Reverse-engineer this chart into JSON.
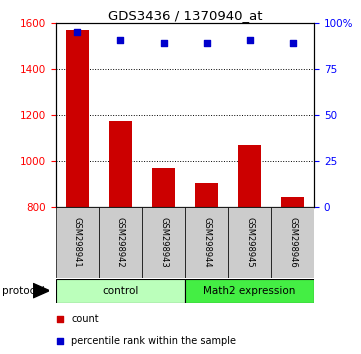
{
  "title": "GDS3436 / 1370940_at",
  "samples": [
    "GSM298941",
    "GSM298942",
    "GSM298943",
    "GSM298944",
    "GSM298945",
    "GSM298946"
  ],
  "counts": [
    1570,
    1175,
    970,
    905,
    1070,
    845
  ],
  "percentile_ranks": [
    95,
    91,
    89,
    89,
    91,
    89
  ],
  "ylim_left": [
    800,
    1600
  ],
  "ylim_right": [
    0,
    100
  ],
  "yticks_left": [
    800,
    1000,
    1200,
    1400,
    1600
  ],
  "yticks_right": [
    0,
    25,
    50,
    75,
    100
  ],
  "yticklabels_right": [
    "0",
    "25",
    "50",
    "75",
    "100%"
  ],
  "bar_color": "#cc0000",
  "dot_color": "#0000cc",
  "bar_bottom": 800,
  "groups": [
    {
      "label": "control",
      "indices": [
        0,
        1,
        2
      ],
      "color": "#bbffbb"
    },
    {
      "label": "Math2 expression",
      "indices": [
        3,
        4,
        5
      ],
      "color": "#44ee44"
    }
  ],
  "group_label": "protocol",
  "legend_items": [
    {
      "label": "count",
      "color": "#cc0000",
      "marker": "s"
    },
    {
      "label": "percentile rank within the sample",
      "color": "#0000cc",
      "marker": "s"
    }
  ],
  "bg_color": "#ffffff"
}
